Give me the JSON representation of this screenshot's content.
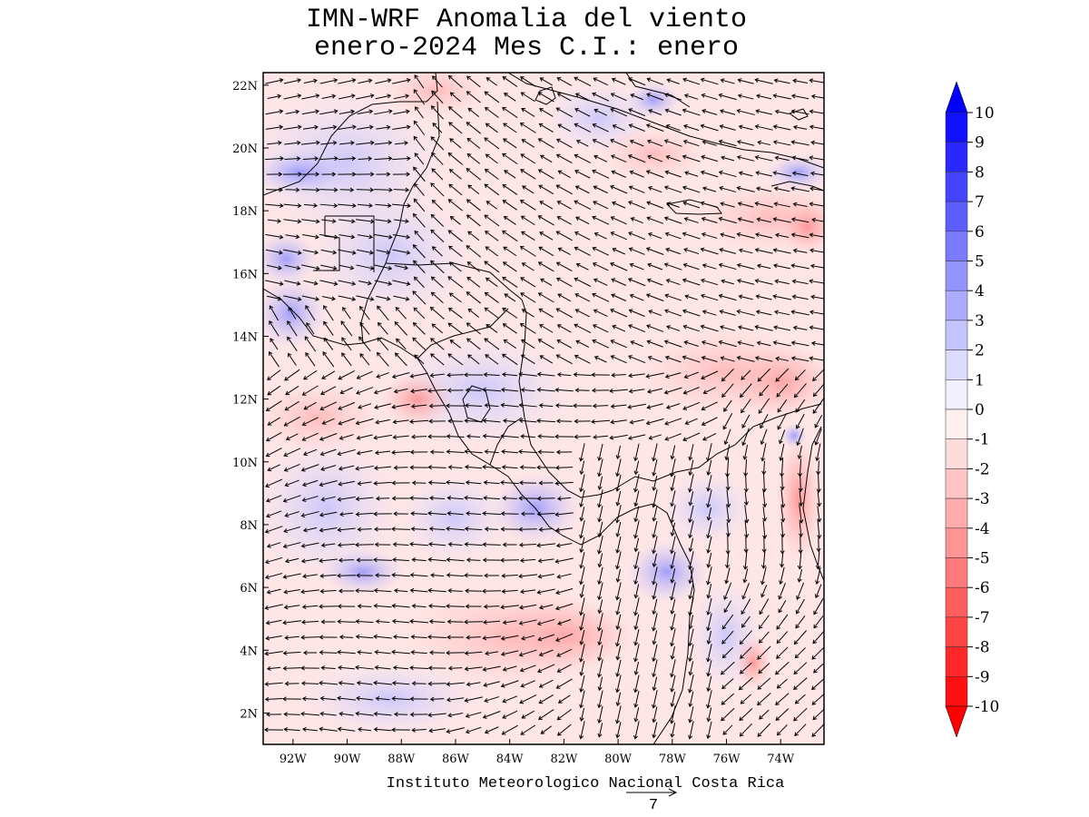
{
  "title": {
    "line1": "IMN-WRF Anomalia del viento",
    "line2": "enero-2024 Mes C.I.: enero"
  },
  "credit": "Instituto Meteorologico Nacional Costa Rica",
  "reference_vector": {
    "label": "7",
    "magnitude": 7
  },
  "axes": {
    "lat_ticks": [
      "22N",
      "20N",
      "18N",
      "16N",
      "14N",
      "12N",
      "10N",
      "8N",
      "6N",
      "4N",
      "2N"
    ],
    "lat_values": [
      22,
      20,
      18,
      16,
      14,
      12,
      10,
      8,
      6,
      4,
      2
    ],
    "lon_ticks": [
      "92W",
      "90W",
      "88W",
      "86W",
      "84W",
      "82W",
      "80W",
      "78W",
      "76W",
      "74W"
    ],
    "lon_values": [
      -92,
      -90,
      -88,
      -86,
      -84,
      -82,
      -80,
      -78,
      -76,
      -74
    ],
    "lat_range": [
      1,
      22.4
    ],
    "lon_range": [
      -93.1,
      -72.4
    ]
  },
  "colorbar": {
    "labels": [
      "10",
      "9",
      "8",
      "7",
      "6",
      "5",
      "4",
      "3",
      "2",
      "1",
      "0",
      "-1",
      "-2",
      "-3",
      "-4",
      "-5",
      "-6",
      "-7",
      "-8",
      "-9",
      "-10"
    ],
    "colors": [
      "#1010ff",
      "#2828ff",
      "#4444ff",
      "#5e5eff",
      "#7a7aff",
      "#9494ff",
      "#acacff",
      "#c4c4ff",
      "#dcdcff",
      "#f0f0ff",
      "#fff0f0",
      "#ffdcdc",
      "#ffc4c4",
      "#ffacac",
      "#ff9494",
      "#ff7a7a",
      "#ff5e5e",
      "#ff4444",
      "#ff2828",
      "#ff1010"
    ],
    "max_color": "#0000ff",
    "min_color": "#ff0000"
  }
}
